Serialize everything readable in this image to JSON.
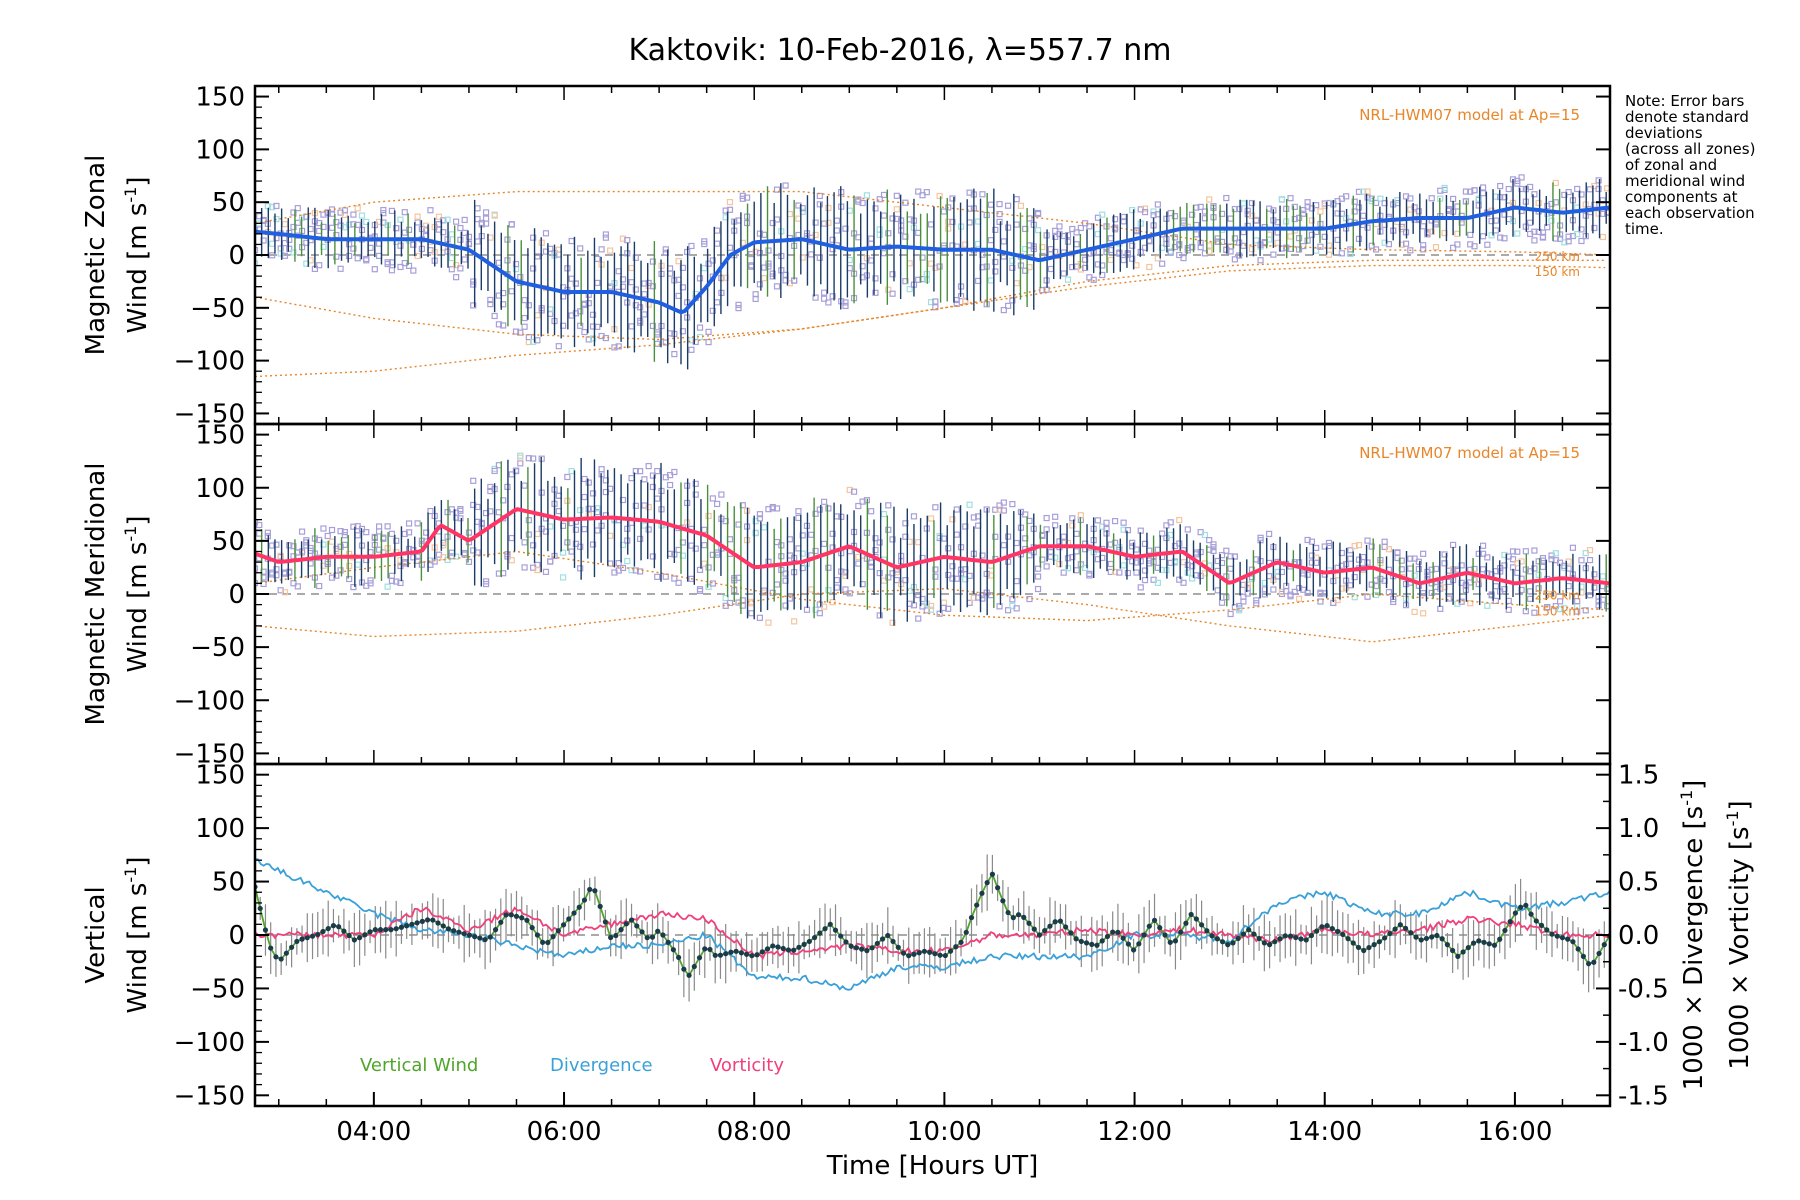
{
  "title": "Kaktovik: 10-Feb-2016, λ=557.7 nm",
  "note_lines": [
    "Note: Error bars",
    "denote standard",
    "deviations",
    "(across all zones)",
    "of zonal and",
    "meridional wind",
    "components at",
    "each observation",
    "time."
  ],
  "model_label": "NRL-HWM07 model at Ap=15",
  "alt_labels": [
    "250 km",
    "150 km"
  ],
  "colors": {
    "zonal": "#1f5fe0",
    "meridional": "#ff3566",
    "vertical": "#4fa52a",
    "divergence": "#3aa0d8",
    "vorticity": "#f0407a",
    "model": "#e8862a",
    "scatter": "#a79fd9",
    "errorbar": "#1a3c66",
    "axes": "#000000"
  },
  "chart_data": [
    {
      "type": "line",
      "panel": "zonal",
      "ylabel_line1": "Magnetic Zonal",
      "ylabel_line2": "Wind [m s",
      "ylabel_sup": "-1",
      "ylabel_end": "]",
      "xlim": [
        2.75,
        17.0
      ],
      "ylim": [
        -160,
        160
      ],
      "yticks": [
        -150,
        -100,
        -50,
        0,
        50,
        100,
        150
      ],
      "series": [
        {
          "x": [
            2.75,
            3.0,
            3.5,
            4.0,
            4.5,
            5.0,
            5.5,
            6.0,
            6.5,
            7.0,
            7.25,
            7.5,
            7.75,
            8.0,
            8.5,
            9.0,
            9.5,
            10.0,
            10.5,
            11.0,
            11.5,
            12.0,
            12.5,
            13.0,
            13.5,
            14.0,
            14.5,
            15.0,
            15.5,
            16.0,
            16.5,
            17.0
          ],
          "values": [
            22,
            20,
            15,
            15,
            15,
            5,
            -25,
            -35,
            -35,
            -45,
            -55,
            -30,
            0,
            12,
            15,
            5,
            8,
            5,
            5,
            -5,
            5,
            15,
            25,
            25,
            25,
            25,
            32,
            35,
            35,
            45,
            40,
            45
          ]
        }
      ],
      "model": [
        {
          "x": [
            2.75,
            4.0,
            5.5,
            7.0,
            8.5,
            10.0,
            11.5,
            13.0,
            14.5,
            16.0,
            17.0
          ],
          "values": [
            -40,
            -60,
            -75,
            -80,
            -70,
            -50,
            -25,
            -10,
            -5,
            -5,
            -5
          ]
        },
        {
          "x": [
            2.75,
            4.0,
            5.5,
            7.0,
            8.5,
            10.0,
            11.5,
            13.0,
            14.5,
            16.0,
            17.0
          ],
          "values": [
            -115,
            -110,
            -95,
            -85,
            -70,
            -50,
            -30,
            -15,
            -10,
            -10,
            -12
          ]
        },
        {
          "x": [
            2.75,
            4.0,
            5.5,
            7.0,
            8.5,
            10.0,
            11.5,
            13.0,
            14.5,
            16.0,
            17.0
          ],
          "values": [
            30,
            50,
            60,
            60,
            60,
            45,
            30,
            10,
            5,
            3,
            0
          ]
        }
      ]
    },
    {
      "type": "line",
      "panel": "meridional",
      "ylabel_line1": "Magnetic Meridional",
      "ylabel_line2": "Wind [m s",
      "ylabel_sup": "-1",
      "ylabel_end": "]",
      "xlim": [
        2.75,
        17.0
      ],
      "ylim": [
        -160,
        160
      ],
      "yticks": [
        -150,
        -100,
        -50,
        0,
        50,
        100,
        150
      ],
      "series": [
        {
          "x": [
            2.75,
            3.0,
            3.5,
            4.0,
            4.5,
            4.7,
            5.0,
            5.5,
            6.0,
            6.5,
            7.0,
            7.5,
            8.0,
            8.5,
            9.0,
            9.5,
            10.0,
            10.5,
            11.0,
            11.5,
            12.0,
            12.5,
            13.0,
            13.5,
            14.0,
            14.5,
            15.0,
            15.5,
            16.0,
            16.5,
            17.0
          ],
          "values": [
            38,
            30,
            35,
            35,
            40,
            65,
            50,
            80,
            70,
            72,
            68,
            55,
            25,
            30,
            45,
            25,
            35,
            30,
            45,
            45,
            35,
            40,
            10,
            30,
            20,
            25,
            10,
            20,
            10,
            15,
            10
          ]
        }
      ],
      "model": [
        {
          "x": [
            2.75,
            4.0,
            5.5,
            7.0,
            8.5,
            10.0,
            11.5,
            13.0,
            14.5,
            16.0,
            17.0
          ],
          "values": [
            10,
            25,
            40,
            20,
            -5,
            -20,
            -25,
            -15,
            0,
            -10,
            -15
          ]
        },
        {
          "x": [
            2.75,
            4.0,
            5.5,
            7.0,
            8.5,
            10.0,
            11.5,
            13.0,
            14.5,
            16.0,
            17.0
          ],
          "values": [
            -30,
            -40,
            -35,
            -20,
            0,
            5,
            -10,
            -30,
            -45,
            -30,
            -20
          ]
        }
      ]
    },
    {
      "type": "line",
      "panel": "vertical",
      "ylabel_line1": "Vertical",
      "ylabel_line2": "Wind [m s",
      "ylabel_sup": "-1",
      "ylabel_end": "]",
      "xlabel": "Time [Hours UT]",
      "xlim": [
        2.75,
        17.0
      ],
      "ylim": [
        -160,
        160
      ],
      "yticks": [
        -150,
        -100,
        -50,
        0,
        50,
        100,
        150
      ],
      "xticks": [
        4,
        6,
        8,
        10,
        12,
        14,
        16
      ],
      "xtick_labels": [
        "04:00",
        "06:00",
        "08:00",
        "10:00",
        "12:00",
        "14:00",
        "16:00"
      ],
      "y2lim": [
        -1.6,
        1.6
      ],
      "y2ticks": [
        -1.5,
        -1.0,
        -0.5,
        0.0,
        0.5,
        1.0,
        1.5
      ],
      "y2tick_labels": [
        "-1.5",
        "-1.0",
        "-0.5",
        "0.0",
        "0.5",
        "1.0",
        "1.5"
      ],
      "y2label_div": "1000 × Divergence [s",
      "y2label_vor": "1000 × Vorticity [s",
      "y2label_sup": "-1",
      "y2label_end": "]",
      "legend": [
        "Vertical Wind",
        "Divergence",
        "Vorticity"
      ],
      "series": [
        {
          "name": "Vertical Wind",
          "axis": "left",
          "x": [
            2.75,
            2.9,
            3.0,
            3.2,
            3.4,
            3.6,
            3.8,
            4.0,
            4.2,
            4.4,
            4.6,
            4.8,
            5.0,
            5.2,
            5.4,
            5.6,
            5.8,
            6.0,
            6.2,
            6.3,
            6.5,
            6.7,
            6.9,
            7.0,
            7.2,
            7.3,
            7.5,
            7.6,
            7.8,
            8.0,
            8.2,
            8.4,
            8.6,
            8.8,
            9.0,
            9.2,
            9.4,
            9.6,
            9.8,
            10.0,
            10.2,
            10.3,
            10.4,
            10.5,
            10.6,
            10.7,
            10.8,
            11.0,
            11.2,
            11.4,
            11.6,
            11.8,
            12.0,
            12.2,
            12.4,
            12.6,
            12.8,
            13.0,
            13.2,
            13.4,
            13.6,
            13.8,
            14.0,
            14.2,
            14.4,
            14.6,
            14.8,
            15.0,
            15.2,
            15.4,
            15.6,
            15.8,
            16.0,
            16.1,
            16.2,
            16.4,
            16.6,
            16.8,
            17.0
          ],
          "values": [
            45,
            -10,
            -25,
            -5,
            0,
            10,
            -5,
            5,
            5,
            10,
            15,
            5,
            0,
            -5,
            20,
            15,
            -10,
            10,
            30,
            48,
            -5,
            15,
            -5,
            5,
            -20,
            -40,
            -10,
            -20,
            -15,
            -20,
            -10,
            -15,
            -5,
            10,
            -10,
            -15,
            0,
            -20,
            -15,
            -20,
            -5,
            20,
            40,
            58,
            35,
            15,
            20,
            0,
            15,
            -5,
            -10,
            5,
            -15,
            15,
            -10,
            20,
            0,
            -10,
            5,
            -10,
            0,
            -5,
            10,
            0,
            -15,
            -5,
            10,
            -5,
            0,
            -20,
            -5,
            -10,
            20,
            30,
            15,
            0,
            -5,
            -30,
            0
          ]
        },
        {
          "name": "Divergence",
          "axis": "right",
          "x": [
            2.75,
            3.0,
            3.5,
            4.0,
            4.5,
            5.0,
            5.5,
            6.0,
            6.5,
            7.0,
            7.5,
            8.0,
            8.5,
            9.0,
            9.5,
            10.0,
            10.5,
            11.0,
            11.5,
            12.0,
            12.5,
            13.0,
            13.5,
            14.0,
            14.5,
            15.0,
            15.5,
            16.0,
            16.5,
            17.0
          ],
          "values": [
            0.7,
            0.6,
            0.4,
            0.2,
            0.05,
            0.0,
            -0.1,
            -0.2,
            -0.1,
            -0.1,
            0.0,
            -0.4,
            -0.4,
            -0.5,
            -0.3,
            -0.3,
            -0.2,
            -0.2,
            -0.2,
            0.0,
            0.0,
            -0.05,
            0.3,
            0.4,
            0.2,
            0.2,
            0.4,
            0.25,
            0.3,
            0.4
          ]
        },
        {
          "name": "Vorticity",
          "axis": "right",
          "x": [
            2.75,
            3.0,
            3.5,
            4.0,
            4.5,
            5.0,
            5.5,
            6.0,
            6.5,
            7.0,
            7.5,
            8.0,
            8.5,
            9.0,
            9.5,
            10.0,
            10.5,
            11.0,
            11.5,
            12.0,
            12.5,
            13.0,
            13.5,
            14.0,
            14.5,
            15.0,
            15.5,
            16.0,
            16.5,
            17.0
          ],
          "values": [
            0.0,
            0.0,
            0.0,
            0.0,
            0.25,
            0.05,
            0.25,
            0.0,
            0.1,
            0.2,
            0.15,
            -0.2,
            -0.15,
            -0.1,
            -0.15,
            -0.15,
            0.0,
            0.0,
            0.05,
            0.0,
            0.05,
            0.0,
            -0.05,
            0.05,
            0.0,
            0.05,
            0.15,
            0.1,
            0.0,
            0.0
          ]
        }
      ]
    }
  ]
}
